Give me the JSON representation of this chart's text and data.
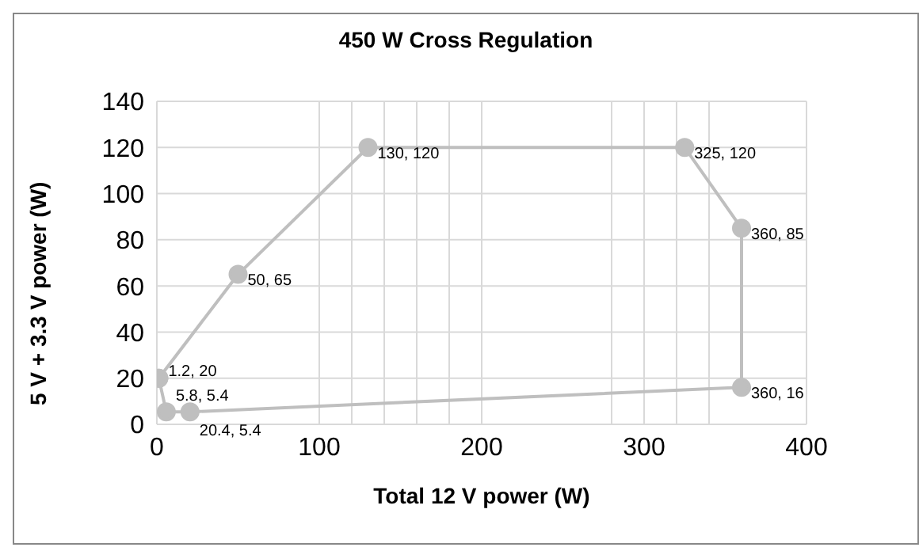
{
  "chart_data": {
    "type": "scatter",
    "title": "450 W Cross Regulation",
    "xlabel": "Total 12 V power (W)",
    "ylabel": "5 V + 3.3 V power (W)",
    "x": [
      1.2,
      50,
      130,
      325,
      360,
      360,
      20.4,
      5.8,
      1.2
    ],
    "series": [
      {
        "color": "#bfbfbf",
        "values": [
          20,
          65,
          120,
          120,
          85,
          16,
          5.4,
          5.4,
          20
        ],
        "value_labels": [
          "1.2, 20",
          "50, 65",
          "130, 120",
          "325, 120",
          "360, 85",
          "360, 16",
          "20.4, 5.4",
          "5.8, 5.4",
          null
        ]
      }
    ],
    "xlim": [
      0,
      400
    ],
    "xticks": [
      0,
      100,
      {
        "value": 120,
        "label": null
      },
      {
        "value": 140,
        "label": null
      },
      {
        "value": 160,
        "label": null
      },
      {
        "value": 180,
        "label": null
      },
      200,
      {
        "value": 280,
        "label": null
      },
      300,
      {
        "value": 320,
        "label": null
      },
      {
        "value": 340,
        "label": null
      },
      400
    ],
    "ylim": [
      0,
      140
    ],
    "yticks": [
      0,
      20,
      40,
      60,
      80,
      100,
      120,
      140
    ],
    "grid": true,
    "marker": "circle",
    "line_style": "solid",
    "legend": false
  }
}
